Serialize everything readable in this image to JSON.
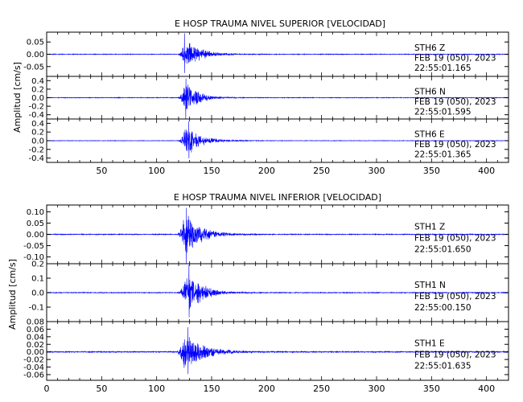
{
  "colors": {
    "trace": "#0000ff",
    "axis": "#000000",
    "background": "#ffffff"
  },
  "chart_data": [
    {
      "type": "line",
      "title": "E HOSP TRAUMA NIVEL SUPERIOR [VELOCIDAD]",
      "ylabel": "Amplitud [cm/s]",
      "xlim": [
        0,
        420
      ],
      "xticks": [
        50,
        100,
        150,
        200,
        250,
        300,
        350,
        400
      ],
      "xtick_labels": [
        "50",
        "100",
        "150",
        "200",
        "250",
        "300",
        "350",
        "400"
      ],
      "grid": false,
      "panels": [
        {
          "channel": "STH6   Z",
          "date": "FEB 19 (050), 2023",
          "time": "22:55:01.165",
          "ylim": [
            -0.09,
            0.09
          ],
          "yticks": [
            0.05,
            0.0,
            -0.05
          ],
          "ytick_labels": [
            "0.05",
            "0.00",
            "-0.05"
          ],
          "envelope": {
            "onset": 119,
            "peak": 126,
            "peak_amplitude": 0.085,
            "decay": 12,
            "noise": 0.0015,
            "peak_window": [
              119,
              133
            ]
          }
        },
        {
          "channel": "STH6   N",
          "date": "FEB 19 (050), 2023",
          "time": "22:55:01.595",
          "ylim": [
            -0.5,
            0.5
          ],
          "yticks": [
            0.4,
            0.2,
            0.0,
            -0.2,
            -0.4
          ],
          "ytick_labels": [
            "0.4",
            "0.2",
            "0.0",
            "-0.2",
            "-0.4"
          ],
          "envelope": {
            "onset": 119,
            "peak": 127,
            "peak_amplitude": 0.5,
            "decay": 10,
            "noise": 0.008,
            "peak_window": [
              120,
              134
            ]
          }
        },
        {
          "channel": "STH6   E",
          "date": "FEB 19 (050), 2023",
          "time": "22:55:01.365",
          "ylim": [
            -0.5,
            0.5
          ],
          "yticks": [
            0.4,
            0.2,
            0.0,
            -0.2,
            -0.4
          ],
          "ytick_labels": [
            "0.4",
            "0.2",
            "0.0",
            "-0.2",
            "-0.4"
          ],
          "envelope": {
            "onset": 119,
            "peak": 127,
            "peak_amplitude": 0.45,
            "decay": 13,
            "noise": 0.006,
            "peak_window": [
              119,
              134
            ]
          }
        }
      ]
    },
    {
      "type": "line",
      "title": "E HOSP TRAUMA NIVEL INFERIOR [VELOCIDAD]",
      "ylabel": "Amplitud [cm/s]",
      "xlim": [
        0,
        420
      ],
      "xticks": [
        0,
        50,
        100,
        150,
        200,
        250,
        300,
        350,
        400
      ],
      "xtick_labels": [
        "0",
        "50",
        "100",
        "150",
        "200",
        "250",
        "300",
        "350",
        "400"
      ],
      "grid": false,
      "panels": [
        {
          "channel": "STH1   Z",
          "date": "FEB 19 (050), 2023",
          "time": "22:55:01.650",
          "ylim": [
            -0.13,
            0.13
          ],
          "yticks": [
            0.1,
            0.05,
            0.0,
            -0.05,
            -0.1
          ],
          "ytick_labels": [
            "0.10",
            "0.05",
            "0.00",
            "-0.05",
            "-0.10"
          ],
          "envelope": {
            "onset": 118,
            "peak": 126,
            "peak_amplitude": 0.13,
            "decay": 13,
            "noise": 0.002,
            "peak_window": [
              120,
              135
            ]
          }
        },
        {
          "channel": "STH1   N",
          "date": "FEB 19 (050), 2023",
          "time": "22:55:00.150",
          "ylim": [
            -0.2,
            0.2
          ],
          "yticks": [
            0.2,
            0.1,
            0.0,
            -0.1
          ],
          "ytick_labels": [
            "0.2",
            "0.1",
            "0.0",
            "-0.1"
          ],
          "envelope": {
            "onset": 118,
            "peak": 129,
            "peak_amplitude": 0.19,
            "decay": 12,
            "noise": 0.003,
            "peak_window": [
              124,
              137
            ]
          }
        },
        {
          "channel": "STH1   E",
          "date": "FEB 19 (050), 2023",
          "time": "22:55:01.635",
          "ylim": [
            -0.075,
            0.08
          ],
          "yticks": [
            0.08,
            0.06,
            0.04,
            0.02,
            0.0,
            -0.02,
            -0.04,
            -0.06
          ],
          "ytick_labels": [
            "0.08",
            "0.06",
            "0.04",
            "0.02",
            "0.00",
            "-0.02",
            "-0.04",
            "-0.06"
          ],
          "envelope": {
            "onset": 118,
            "peak": 125,
            "peak_amplitude": 0.065,
            "decay": 16,
            "noise": 0.0015,
            "peak_window": [
              120,
              138
            ]
          }
        }
      ]
    }
  ]
}
